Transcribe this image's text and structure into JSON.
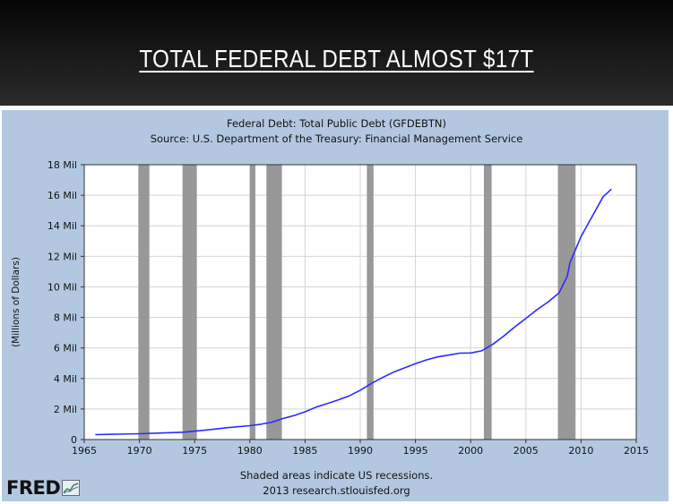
{
  "slide": {
    "title": "TOTAL FEDERAL DEBT ALMOST $17T"
  },
  "chart_data": {
    "type": "line",
    "title": "Federal Debt: Total Public Debt (GFDEBTN)",
    "subtitle": "Source: U.S. Department of the Treasury: Financial Management Service",
    "xlabel": "",
    "ylabel": "(Millions of Dollars)",
    "xlim": [
      1965,
      2015
    ],
    "ylim": [
      0,
      18
    ],
    "x_ticks": [
      "1965",
      "1970",
      "1975",
      "1980",
      "1985",
      "1990",
      "1995",
      "2000",
      "2005",
      "2010",
      "2015"
    ],
    "y_ticks": [
      "0",
      "2 Mil",
      "4 Mil",
      "6 Mil",
      "8 Mil",
      "10 Mil",
      "12 Mil",
      "14 Mil",
      "16 Mil",
      "18 Mil"
    ],
    "grid": true,
    "line_color": "#2b2bff",
    "recession_color": "#989898",
    "recessions": [
      [
        1969.9,
        1970.9
      ],
      [
        1973.9,
        1975.2
      ],
      [
        1980.0,
        1980.5
      ],
      [
        1981.5,
        1982.9
      ],
      [
        1990.6,
        1991.2
      ],
      [
        2001.2,
        2001.9
      ],
      [
        2007.9,
        2009.5
      ]
    ],
    "series": [
      {
        "name": "",
        "x": [
          1966,
          1968,
          1970,
          1972,
          1974,
          1976,
          1978,
          1980,
          1981,
          1982,
          1983,
          1984,
          1985,
          1986,
          1987,
          1988,
          1989,
          1990,
          1991,
          1992,
          1993,
          1994,
          1995,
          1996,
          1997,
          1998,
          1999,
          2000,
          2001,
          2002,
          2003,
          2004,
          2005,
          2006,
          2007,
          2008,
          2008.75,
          2009,
          2010,
          2011,
          2012,
          2012.75
        ],
        "y": [
          0.32,
          0.35,
          0.38,
          0.43,
          0.48,
          0.62,
          0.78,
          0.91,
          1.0,
          1.14,
          1.38,
          1.57,
          1.82,
          2.12,
          2.35,
          2.6,
          2.86,
          3.23,
          3.67,
          4.06,
          4.41,
          4.69,
          4.97,
          5.22,
          5.41,
          5.53,
          5.66,
          5.67,
          5.81,
          6.23,
          6.78,
          7.38,
          7.93,
          8.5,
          9.0,
          9.6,
          10.7,
          11.6,
          13.3,
          14.6,
          15.9,
          16.4
        ]
      }
    ],
    "notes": [
      "Shaded areas indicate US recessions.",
      "2013 research.stlouisfed.org"
    ]
  },
  "logo": {
    "text": "FRED"
  }
}
